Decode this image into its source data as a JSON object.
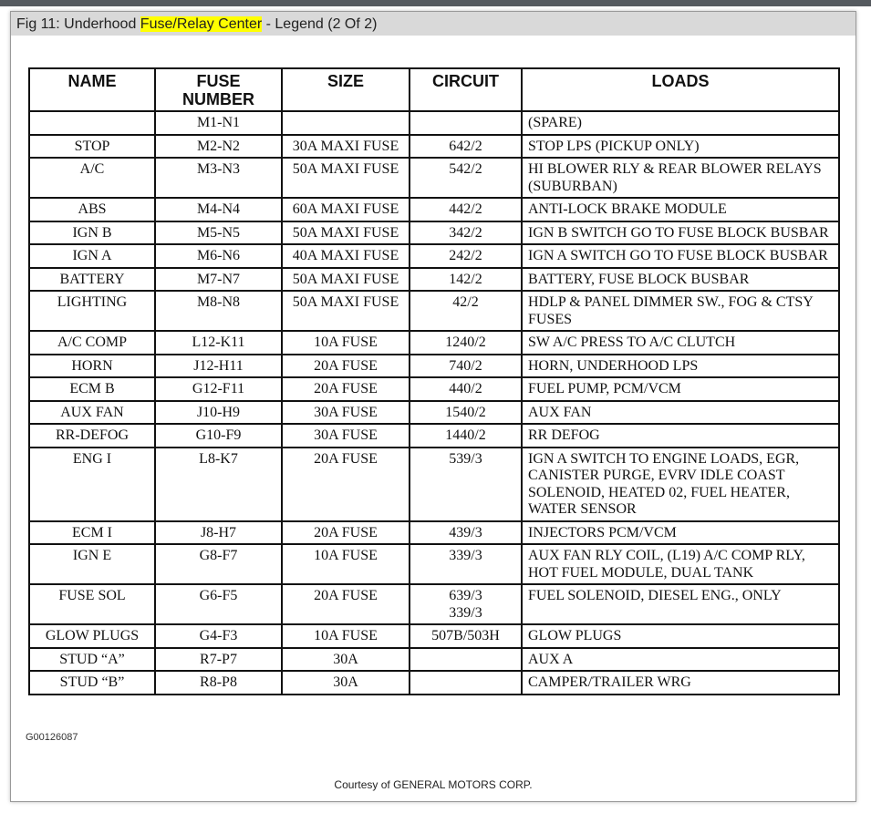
{
  "title": {
    "prefix": "Fig 11: Underhood ",
    "highlight": "Fuse/Relay Center",
    "suffix": " - Legend (2 Of 2)"
  },
  "table": {
    "headers": [
      "NAME",
      "FUSE NUMBER",
      "SIZE",
      "CIRCUIT",
      "LOADS"
    ],
    "rows": [
      {
        "name": "",
        "fuse": "M1-N1",
        "size": "",
        "circuit": "",
        "loads": "(SPARE)"
      },
      {
        "name": "STOP",
        "fuse": "M2-N2",
        "size": "30A MAXI FUSE",
        "circuit": "642/2",
        "loads": "STOP LPS (PICKUP ONLY)"
      },
      {
        "name": "A/C",
        "fuse": "M3-N3",
        "size": "50A MAXI FUSE",
        "circuit": "542/2",
        "loads": "HI BLOWER RLY & REAR BLOWER RELAYS (SUBURBAN)"
      },
      {
        "name": "ABS",
        "fuse": "M4-N4",
        "size": "60A MAXI FUSE",
        "circuit": "442/2",
        "loads": "ANTI-LOCK BRAKE MODULE"
      },
      {
        "name": "IGN B",
        "fuse": "M5-N5",
        "size": "50A MAXI FUSE",
        "circuit": "342/2",
        "loads": "IGN B SWITCH GO TO FUSE BLOCK BUSBAR"
      },
      {
        "name": "IGN A",
        "fuse": "M6-N6",
        "size": "40A MAXI FUSE",
        "circuit": "242/2",
        "loads": "IGN A SWITCH GO TO FUSE BLOCK BUSBAR"
      },
      {
        "name": "BATTERY",
        "fuse": "M7-N7",
        "size": "50A MAXI FUSE",
        "circuit": "142/2",
        "loads": "BATTERY, FUSE BLOCK BUSBAR"
      },
      {
        "name": "LIGHTING",
        "fuse": "M8-N8",
        "size": "50A MAXI FUSE",
        "circuit": "42/2",
        "loads": "HDLP & PANEL DIMMER SW., FOG & CTSY FUSES"
      },
      {
        "name": "A/C COMP",
        "fuse": "L12-K11",
        "size": "10A FUSE",
        "circuit": "1240/2",
        "loads": "SW A/C PRESS TO A/C CLUTCH"
      },
      {
        "name": "HORN",
        "fuse": "J12-H11",
        "size": "20A FUSE",
        "circuit": "740/2",
        "loads": "HORN, UNDERHOOD LPS"
      },
      {
        "name": "ECM B",
        "fuse": "G12-F11",
        "size": "20A FUSE",
        "circuit": "440/2",
        "loads": "FUEL PUMP, PCM/VCM"
      },
      {
        "name": "AUX FAN",
        "fuse": "J10-H9",
        "size": "30A FUSE",
        "circuit": "1540/2",
        "loads": "AUX FAN"
      },
      {
        "name": "RR-DEFOG",
        "fuse": "G10-F9",
        "size": "30A FUSE",
        "circuit": "1440/2",
        "loads": "RR DEFOG"
      },
      {
        "name": "ENG I",
        "fuse": "L8-K7",
        "size": "20A FUSE",
        "circuit": "539/3",
        "loads": "IGN A SWITCH TO ENGINE LOADS, EGR, CANISTER PURGE, EVRV IDLE COAST SOLENOID, HEATED 02, FUEL HEATER, WATER SENSOR"
      },
      {
        "name": "ECM I",
        "fuse": "J8-H7",
        "size": "20A FUSE",
        "circuit": "439/3",
        "loads": "INJECTORS PCM/VCM"
      },
      {
        "name": "IGN E",
        "fuse": "G8-F7",
        "size": "10A FUSE",
        "circuit": "339/3",
        "loads": "AUX FAN RLY COIL, (L19) A/C COMP RLY, HOT FUEL MODULE, DUAL TANK"
      },
      {
        "name": "FUSE SOL",
        "fuse": "G6-F5",
        "size": "20A FUSE",
        "circuit": "639/3\n339/3",
        "loads": "FUEL SOLENOID, DIESEL ENG., ONLY"
      },
      {
        "name": "GLOW PLUGS",
        "fuse": "G4-F3",
        "size": "10A FUSE",
        "circuit": "507B/503H",
        "loads": "GLOW PLUGS"
      },
      {
        "name": "STUD “A”",
        "fuse": "R7-P7",
        "size": "30A",
        "circuit": "",
        "loads": "AUX A"
      },
      {
        "name": "STUD “B”",
        "fuse": "R8-P8",
        "size": "30A",
        "circuit": "",
        "loads": "CAMPER/TRAILER WRG"
      }
    ]
  },
  "figure_code": "G00126087",
  "courtesy": "Courtesy of GENERAL MOTORS CORP."
}
